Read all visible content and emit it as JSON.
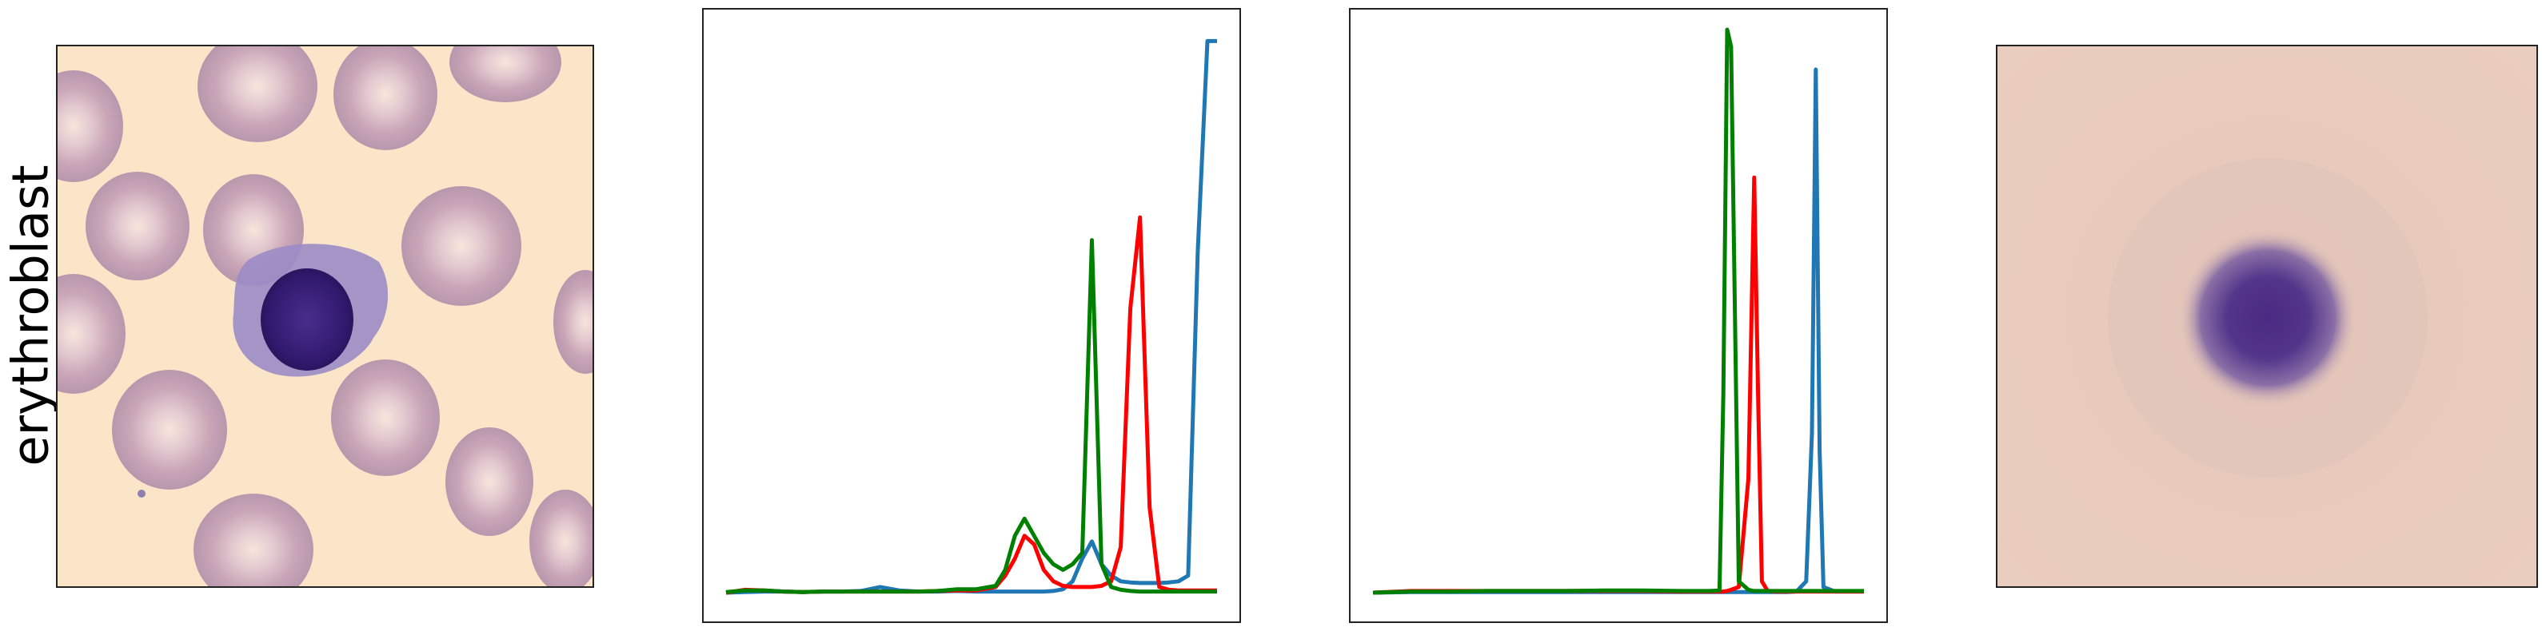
{
  "row_label": "erythroblast",
  "colors": {
    "red": "#ff0000",
    "green": "#008000",
    "blue": "#1f77b4",
    "background_cream": "#fbe5c8",
    "rbc": "#cbaab6",
    "nucleus": "#3a1f78",
    "mean_bg": "#e8ccbd"
  },
  "chart_data": [
    {
      "type": "line",
      "title": "",
      "xlabel": "",
      "ylabel": "",
      "xlim": [
        0,
        255
      ],
      "ylim": [
        0,
        1
      ],
      "grid": false,
      "x": [
        0,
        10,
        20,
        30,
        40,
        50,
        60,
        70,
        80,
        90,
        100,
        110,
        120,
        130,
        140,
        145,
        150,
        155,
        160,
        165,
        170,
        175,
        180,
        185,
        190,
        195,
        200,
        205,
        210,
        215,
        220,
        225,
        230,
        235,
        240,
        245,
        250,
        252,
        255
      ],
      "series": [
        {
          "color": "red",
          "values": [
            0,
            0.005,
            0.004,
            0.002,
            0.001,
            0.002,
            0.002,
            0.002,
            0.002,
            0.002,
            0.002,
            0.003,
            0.004,
            0.004,
            0.01,
            0.03,
            0.06,
            0.1,
            0.085,
            0.04,
            0.02,
            0.012,
            0.01,
            0.01,
            0.01,
            0.012,
            0.02,
            0.08,
            0.5,
            0.66,
            0.15,
            0.01,
            0.005,
            0.004,
            0.004,
            0.004,
            0.004,
            0.004,
            0.004
          ]
        },
        {
          "color": "green",
          "values": [
            0.001,
            0.004,
            0.004,
            0.002,
            0.001,
            0.002,
            0.002,
            0.002,
            0.002,
            0.002,
            0.002,
            0.003,
            0.006,
            0.006,
            0.012,
            0.04,
            0.1,
            0.13,
            0.1,
            0.07,
            0.05,
            0.04,
            0.05,
            0.07,
            0.62,
            0.05,
            0.01,
            0.005,
            0.003,
            0.002,
            0.002,
            0.002,
            0.002,
            0.002,
            0.002,
            0.002,
            0.002,
            0.002,
            0.002
          ]
        },
        {
          "color": "blue",
          "values": [
            0,
            0.001,
            0.002,
            0.002,
            0.001,
            0.002,
            0.002,
            0.003,
            0.01,
            0.004,
            0.002,
            0.002,
            0.003,
            0.002,
            0.002,
            0.002,
            0.002,
            0.002,
            0.002,
            0.002,
            0.003,
            0.006,
            0.02,
            0.06,
            0.09,
            0.05,
            0.03,
            0.02,
            0.018,
            0.017,
            0.017,
            0.017,
            0.018,
            0.02,
            0.03,
            0.6,
            0.97,
            0.97,
            0.97
          ]
        }
      ]
    },
    {
      "type": "line",
      "title": "",
      "xlabel": "",
      "ylabel": "",
      "xlim": [
        0,
        255
      ],
      "ylim": [
        0,
        1
      ],
      "grid": false,
      "x": [
        0,
        20,
        40,
        60,
        80,
        100,
        120,
        140,
        160,
        170,
        175,
        180,
        182,
        184,
        186,
        190,
        195,
        198,
        200,
        202,
        205,
        210,
        215,
        220,
        225,
        228,
        230,
        232,
        234,
        240,
        255
      ],
      "series": [
        {
          "color": "red",
          "values": [
            0,
            0.003,
            0.003,
            0.003,
            0.003,
            0.003,
            0.003,
            0.003,
            0.002,
            0.002,
            0.002,
            0.002,
            0.002,
            0.003,
            0.005,
            0.01,
            0.2,
            0.73,
            0.35,
            0.02,
            0.003,
            0.002,
            0.002,
            0.002,
            0.002,
            0.002,
            0.002,
            0.002,
            0.002,
            0.002,
            0.002
          ]
        },
        {
          "color": "green",
          "values": [
            0,
            0.002,
            0.002,
            0.003,
            0.003,
            0.003,
            0.004,
            0.004,
            0.003,
            0.003,
            0.003,
            0.004,
            0.35,
            0.99,
            0.96,
            0.02,
            0.005,
            0.003,
            0.003,
            0.003,
            0.003,
            0.003,
            0.003,
            0.003,
            0.003,
            0.003,
            0.003,
            0.003,
            0.003,
            0.003,
            0.003
          ]
        },
        {
          "color": "blue",
          "values": [
            0,
            0.001,
            0.001,
            0.001,
            0.001,
            0.001,
            0.001,
            0.001,
            0.001,
            0.001,
            0.001,
            0.001,
            0.001,
            0.001,
            0.001,
            0.001,
            0.001,
            0.001,
            0.001,
            0.001,
            0.001,
            0.001,
            0.001,
            0.002,
            0.02,
            0.28,
            0.92,
            0.25,
            0.01,
            0.002,
            0.002
          ]
        }
      ]
    }
  ]
}
